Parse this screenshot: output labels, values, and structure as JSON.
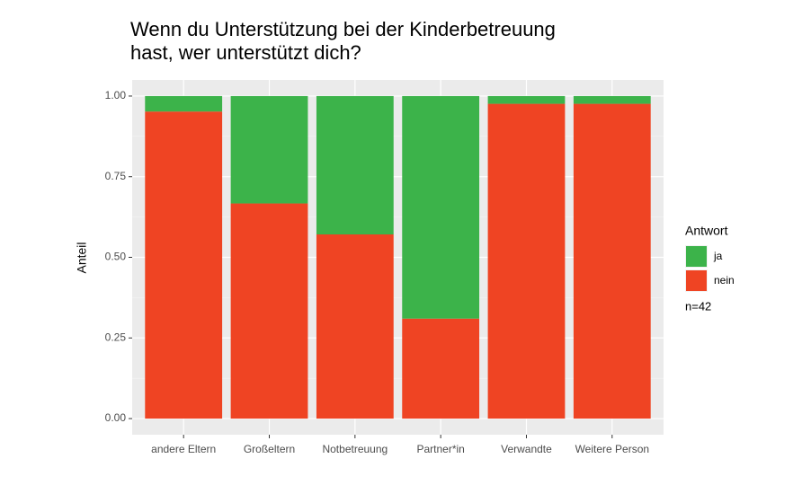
{
  "chart_data": {
    "type": "stacked_bar",
    "title": [
      "Wenn du Unterstützung bei der Kinderbetreuung",
      "hast, wer unterstützt dich?"
    ],
    "y_label": "Anteil",
    "categories": [
      "andere Eltern",
      "Großeltern",
      "Notbetreuung",
      "Partner*in",
      "Verwandte",
      "Weitere Person"
    ],
    "series": [
      {
        "name": "ja",
        "color": "#3cb34a",
        "values": [
          0.048,
          0.333,
          0.429,
          0.69,
          0.024,
          0.024
        ]
      },
      {
        "name": "nein",
        "color": "#ef4423",
        "values": [
          0.952,
          0.667,
          0.571,
          0.31,
          0.976,
          0.976
        ]
      }
    ],
    "ylim": [
      -0.05,
      1.05
    ],
    "yticks": [
      {
        "value": 0,
        "label": "0.00"
      },
      {
        "value": 0.25,
        "label": "0.25"
      },
      {
        "value": 0.5,
        "label": "0.50"
      },
      {
        "value": 0.75,
        "label": "0.75"
      },
      {
        "value": 1,
        "label": "1.00"
      }
    ],
    "grid": true,
    "legend_title": "Antwort",
    "legend_position": "right",
    "note": "n=42"
  }
}
